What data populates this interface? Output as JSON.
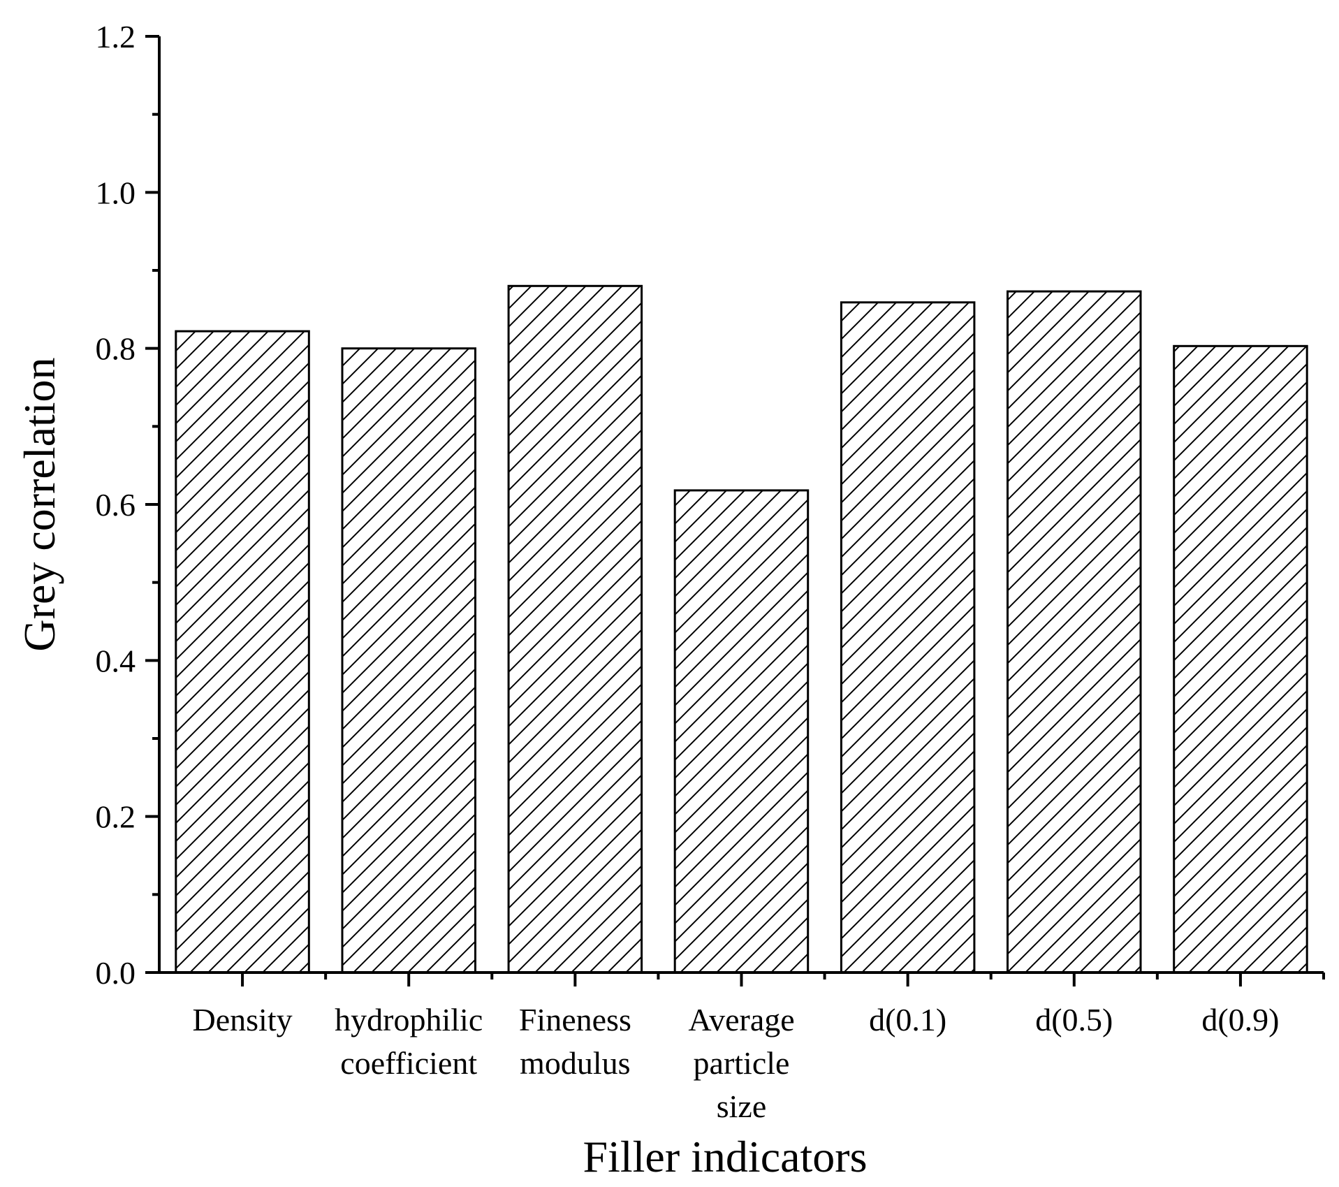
{
  "chart_data": {
    "type": "bar",
    "title": "",
    "xlabel": "Filler indicators",
    "ylabel": "Grey correlation",
    "categories": [
      [
        "Density"
      ],
      [
        "hydrophilic",
        "coefficient"
      ],
      [
        "Fineness",
        "modulus"
      ],
      [
        "Average",
        "particle",
        "size"
      ],
      [
        "d(0.1)"
      ],
      [
        "d(0.5)"
      ],
      [
        "d(0.9)"
      ]
    ],
    "values": [
      0.822,
      0.8,
      0.88,
      0.618,
      0.859,
      0.873,
      0.803
    ],
    "ylim": [
      0,
      1.2
    ],
    "yticks": [
      "0.0",
      "0.2",
      "0.4",
      "0.6",
      "0.8",
      "1.0",
      "1.2"
    ],
    "grid": false,
    "legend": "none",
    "bar_fill": "hatched diagonal",
    "colors": {
      "stroke": "#000000",
      "background": "#ffffff"
    }
  }
}
